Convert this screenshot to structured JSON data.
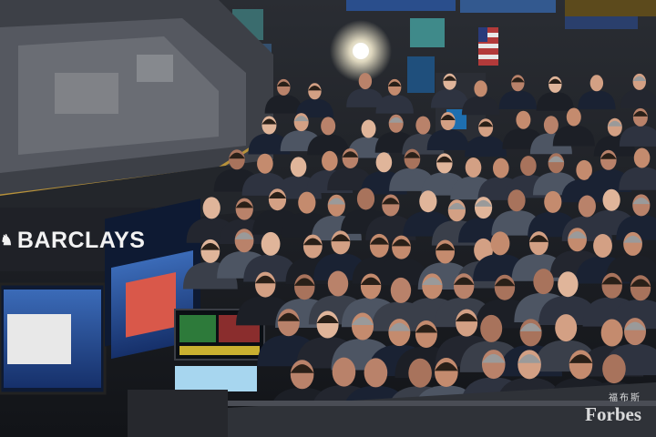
{
  "scene": {
    "kind": "photo",
    "subject": "Crowd of traders and press on the stock exchange floor around trading posts and monitors"
  },
  "sign": {
    "glyph": "♞",
    "text": "BARCLAYS"
  },
  "watermark": {
    "cn": "福布斯",
    "latin": "Forbes"
  },
  "colors": {
    "crowd_dark": "#1c1f26",
    "suit": "#23262f",
    "skin": "#b9826a",
    "monitor_blue": "#2a4e8c",
    "post_gray": "#4a4d55",
    "stage_light": "#fff6d8"
  }
}
